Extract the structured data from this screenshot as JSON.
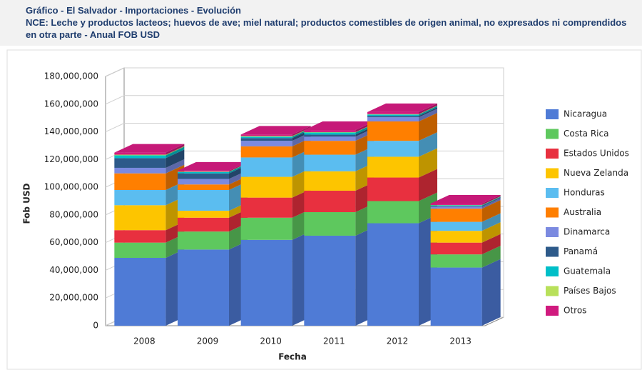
{
  "chart_data": {
    "type": "bar3d_stacked",
    "title": "Gráfico - El Salvador - Importaciones - Evolución",
    "subtitle": "NCE: Leche y productos lacteos; huevos de ave; miel natural; productos comestibles de origen animal, no expresados ni comprendidos en otra parte - Anual FOB USD",
    "x_label": "Fecha",
    "y_label": "Fob USD",
    "categories": [
      "2008",
      "2009",
      "2010",
      "2011",
      "2012",
      "2013"
    ],
    "series": [
      {
        "name": "Nicaragua",
        "color": "#4f7bd6",
        "values": [
          49000000,
          55000000,
          62000000,
          65000000,
          74000000,
          42000000
        ]
      },
      {
        "name": "Costa Rica",
        "color": "#5ec85e",
        "values": [
          11000000,
          13000000,
          16000000,
          17000000,
          16000000,
          9500000
        ]
      },
      {
        "name": "Estados Unidos",
        "color": "#e8303f",
        "values": [
          9000000,
          10000000,
          14500000,
          15500000,
          17000000,
          8500000
        ]
      },
      {
        "name": "Nueva Zelanda",
        "color": "#fdc500",
        "values": [
          18000000,
          5000000,
          15000000,
          14000000,
          15000000,
          8500000
        ]
      },
      {
        "name": "Honduras",
        "color": "#5bbdf0",
        "values": [
          11000000,
          15000000,
          14000000,
          12000000,
          11500000,
          6500000
        ]
      },
      {
        "name": "Australia",
        "color": "#ff7f00",
        "values": [
          12000000,
          4000000,
          8000000,
          10000000,
          14000000,
          9500000
        ]
      },
      {
        "name": "Dinamarca",
        "color": "#7b8ae0",
        "values": [
          4000000,
          4000000,
          4000000,
          3000000,
          3000000,
          1500000
        ]
      },
      {
        "name": "Panamá",
        "color": "#2d5a8a",
        "values": [
          7000000,
          4000000,
          2000000,
          1500000,
          1000000,
          500000
        ]
      },
      {
        "name": "Guatemala",
        "color": "#00bfc8",
        "values": [
          2000000,
          1000000,
          1000000,
          1500000,
          1000000,
          500000
        ]
      },
      {
        "name": "Países Bajos",
        "color": "#b8e05a",
        "values": [
          500000,
          300000,
          500000,
          300000,
          300000,
          200000
        ]
      },
      {
        "name": "Otros",
        "color": "#d01a7e",
        "values": [
          1500000,
          700000,
          1000000,
          1500000,
          1500000,
          1000000
        ]
      }
    ],
    "ylim": [
      0,
      180000000
    ],
    "yticks": [
      0,
      {
        "value": 20000000,
        "label": "20,000,000"
      },
      {
        "value": 40000000,
        "label": "40,000,000"
      },
      {
        "value": 60000000,
        "label": "60,000,000"
      },
      {
        "value": 80000000,
        "label": "80,000,000"
      },
      {
        "value": 100000000,
        "label": "100,000,000"
      },
      {
        "value": 120000000,
        "label": "120,000,000"
      },
      {
        "value": 140000000,
        "label": "140,000,000"
      },
      {
        "value": 160000000,
        "label": "160,000,000"
      },
      {
        "value": 180000000,
        "label": "180,000,000"
      }
    ],
    "grid": true,
    "legend": "right"
  }
}
